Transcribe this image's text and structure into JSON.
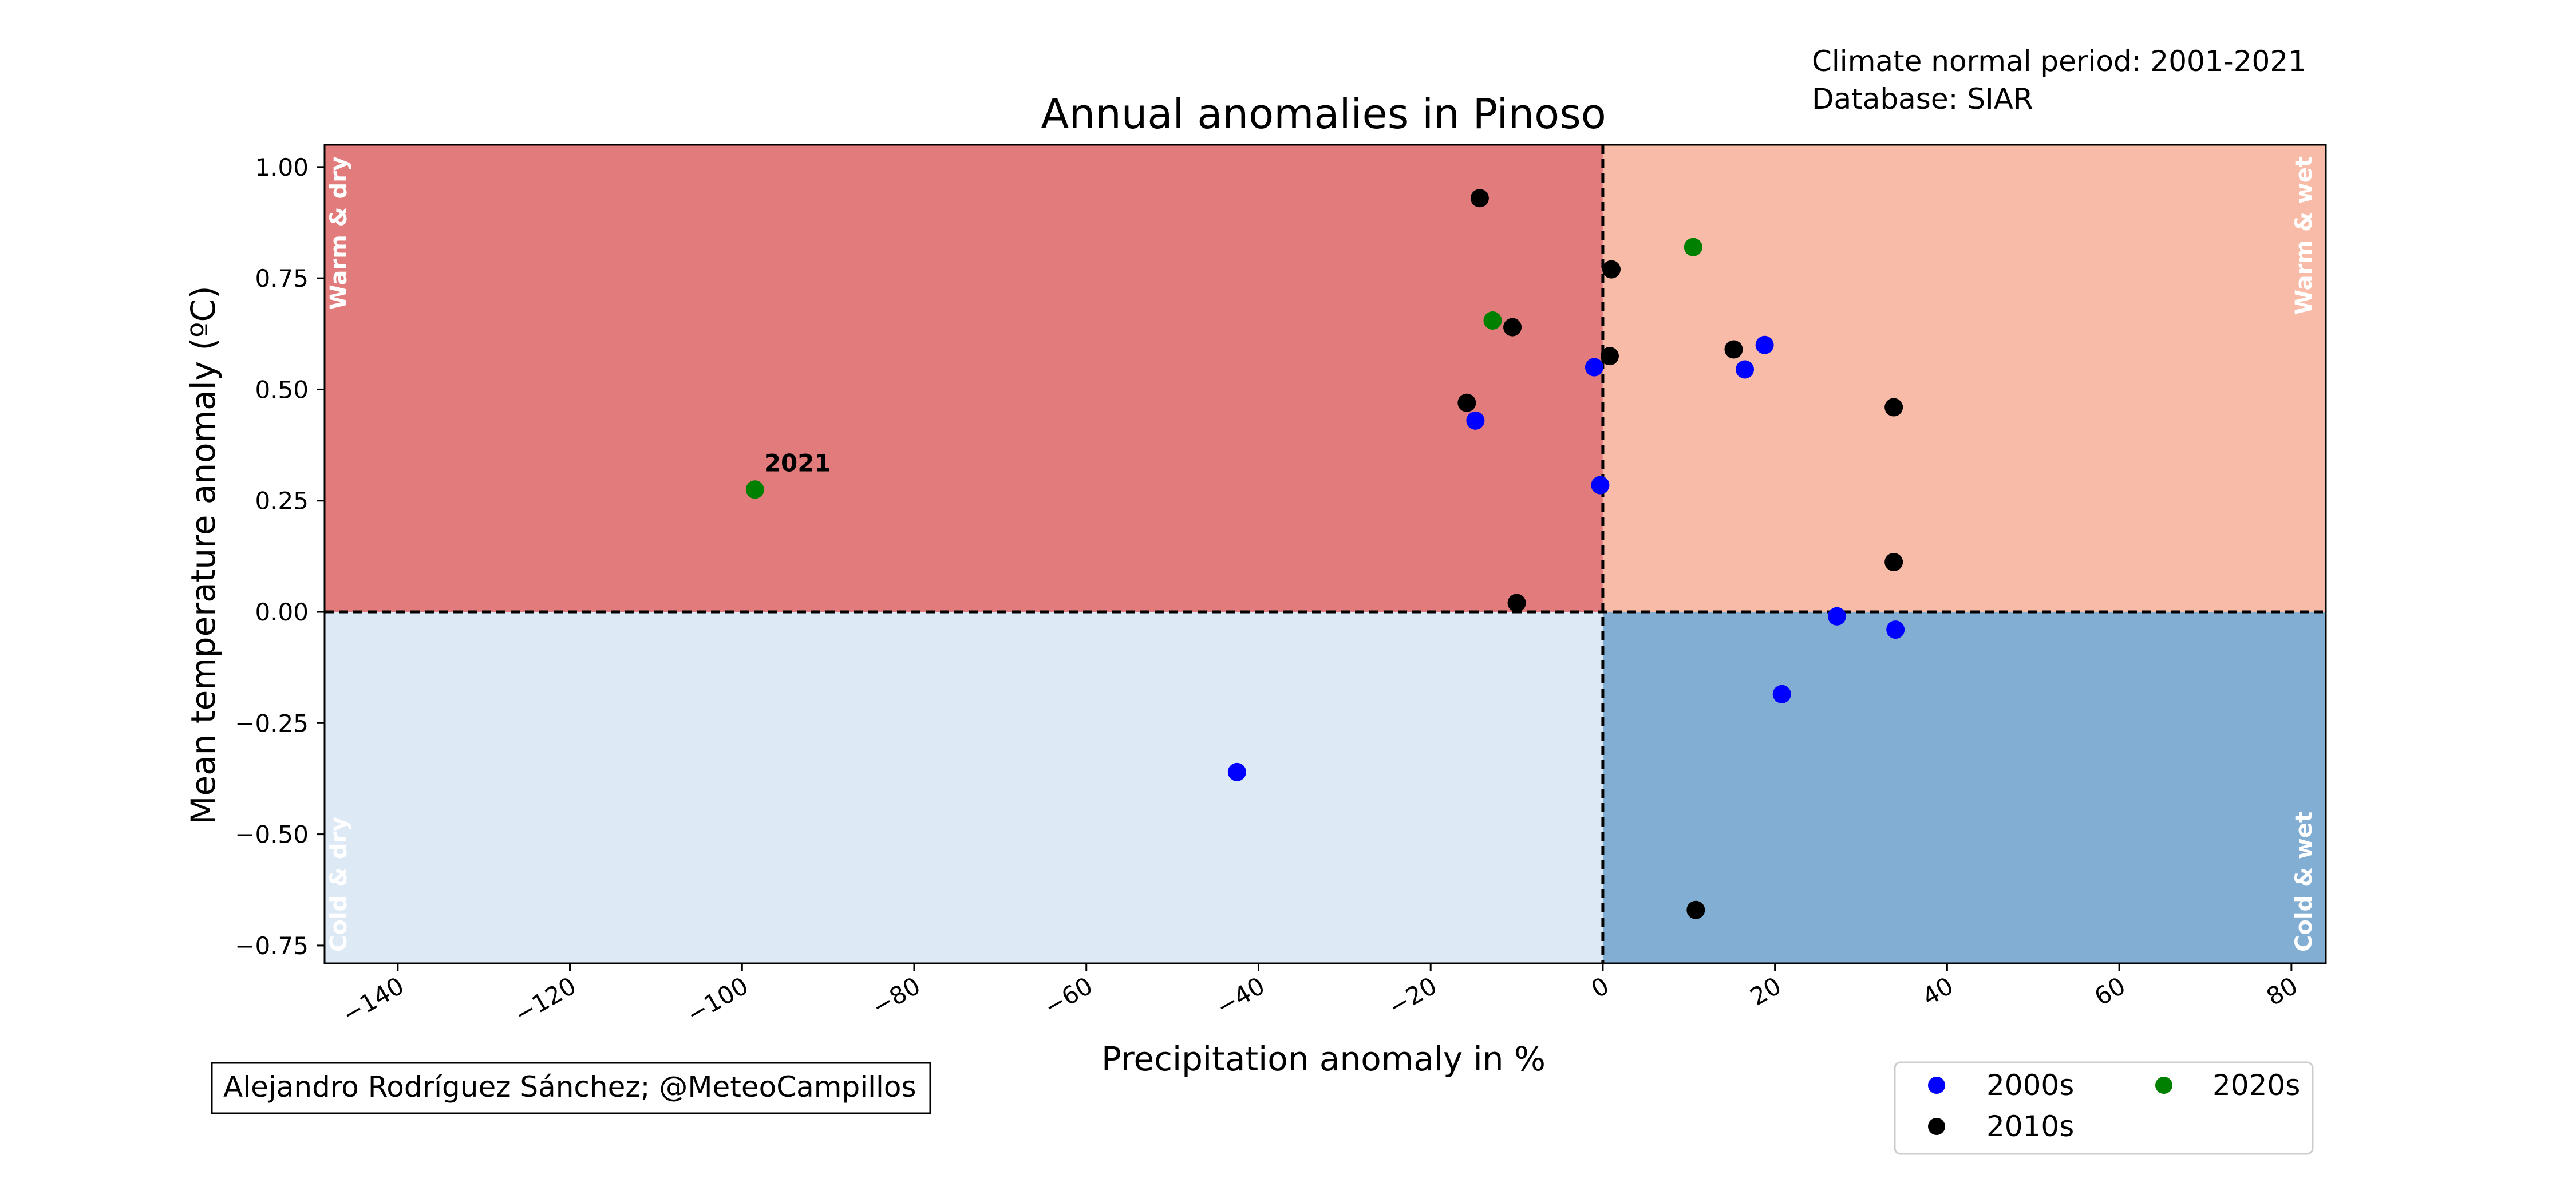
{
  "chart_data": {
    "type": "scatter",
    "title": "Annual anomalies in Pinoso",
    "info_lines": [
      "Climate normal period: 2001-2021",
      "Database: SIAR"
    ],
    "xlabel": "Precipitation anomaly in %",
    "ylabel": "Mean temperature anomaly (ºC)",
    "xlim": [
      -148.5,
      84
    ],
    "ylim": [
      -0.79,
      1.05
    ],
    "x_ticks": [
      -140,
      -120,
      -100,
      -80,
      -60,
      -40,
      -20,
      0,
      20,
      40,
      60,
      80
    ],
    "x_tick_labels": [
      "−140",
      "−120",
      "−100",
      "−80",
      "−60",
      "−40",
      "−20",
      "0",
      "20",
      "40",
      "60",
      "80"
    ],
    "y_ticks": [
      1.0,
      0.75,
      0.5,
      0.25,
      0.0,
      -0.25,
      -0.5,
      -0.75
    ],
    "y_tick_labels": [
      "1.00",
      "0.75",
      "0.50",
      "0.25",
      "0.00",
      "−0.25",
      "−0.50",
      "−0.75"
    ],
    "grid": false,
    "quadrants": [
      {
        "label": "Warm & dry",
        "color": "#e27b7c"
      },
      {
        "label": "Warm & wet",
        "color": "#f7bba8"
      },
      {
        "label": "Cold & dry",
        "color": "#dee9f6"
      },
      {
        "label": "Cold & wet",
        "color": "#82aed4"
      }
    ],
    "series": [
      {
        "name": "2000s",
        "color": "#0000ff",
        "points": [
          [
            -1,
            0.55
          ],
          [
            -0.3,
            0.285
          ],
          [
            -14.8,
            0.43
          ],
          [
            -42.5,
            -0.36
          ],
          [
            16.5,
            0.545
          ],
          [
            18.8,
            0.6
          ],
          [
            27.2,
            -0.01
          ],
          [
            34,
            -0.04
          ],
          [
            20.8,
            -0.185
          ]
        ]
      },
      {
        "name": "2010s",
        "color": "#000000",
        "points": [
          [
            -14.3,
            0.93
          ],
          [
            1,
            0.77
          ],
          [
            -10.5,
            0.64
          ],
          [
            0.8,
            0.575
          ],
          [
            -15.8,
            0.47
          ],
          [
            -10,
            0.02
          ],
          [
            15.2,
            0.59
          ],
          [
            33.8,
            0.46
          ],
          [
            33.8,
            0.112
          ],
          [
            10.8,
            -0.67
          ]
        ]
      },
      {
        "name": "2020s",
        "color": "#008000",
        "points": [
          [
            -98.5,
            0.275
          ],
          [
            -12.8,
            0.655
          ],
          [
            10.5,
            0.82
          ]
        ]
      }
    ],
    "annotations": [
      {
        "text": "2021",
        "x": -98.5,
        "y": 0.275
      }
    ],
    "legend": {
      "location": "lower-right",
      "columns": 2,
      "entries": [
        "2000s",
        "2020s",
        "2010s"
      ]
    },
    "credit": "Alejandro Rodríguez Sánchez; @MeteoCampillos"
  }
}
